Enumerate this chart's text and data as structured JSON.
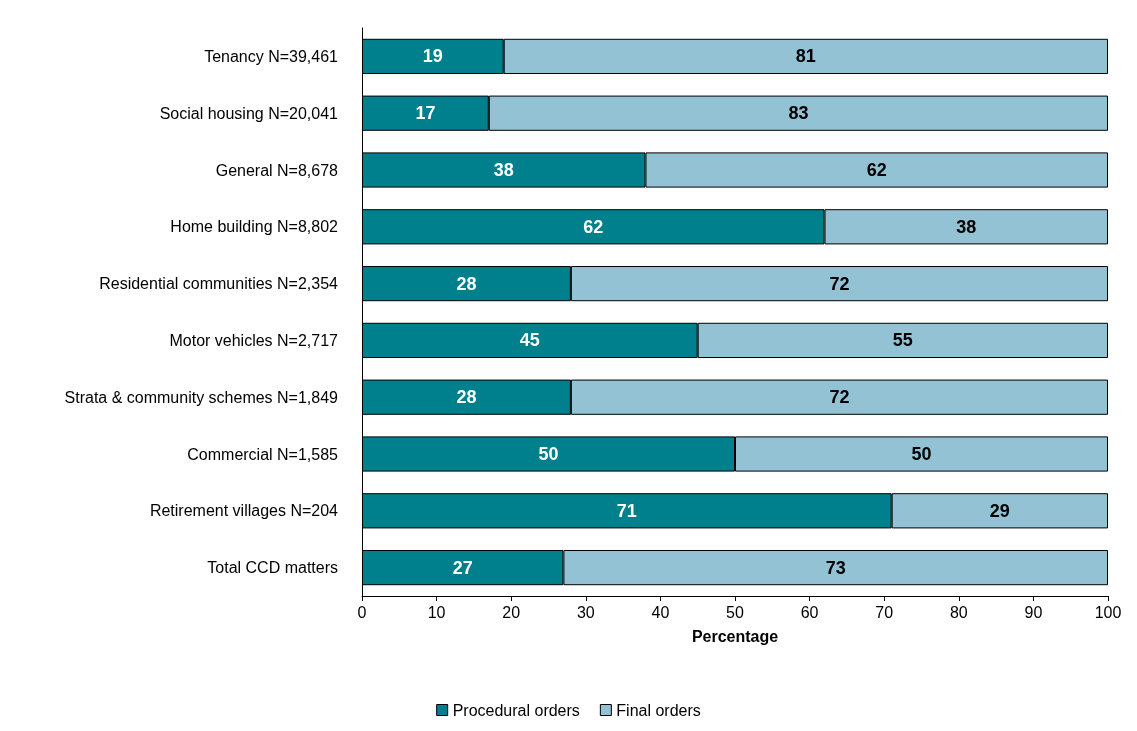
{
  "chart_data": {
    "type": "bar",
    "orientation": "horizontal",
    "stacked": true,
    "xlabel": "Percentage",
    "categories": [
      "Tenancy N=39,461",
      "Social housing N=20,041",
      "General N=8,678",
      "Home building N=8,802",
      "Residential communities N=2,354",
      "Motor vehicles N=2,717",
      "Strata & community schemes N=1,849",
      "Commercial N=1,585",
      "Retirement villages N=204",
      "Total CCD matters"
    ],
    "series": [
      {
        "name": "Procedural orders",
        "color": "#007f8c",
        "values": [
          19,
          17,
          38,
          62,
          28,
          45,
          28,
          50,
          71,
          27
        ]
      },
      {
        "name": "Final orders",
        "color": "#93c2d5",
        "values": [
          81,
          83,
          62,
          38,
          72,
          55,
          72,
          50,
          29,
          73
        ]
      }
    ],
    "xlim": [
      0,
      100
    ],
    "xticks": [
      0,
      10,
      20,
      30,
      40,
      50,
      60,
      70,
      80,
      90,
      100
    ],
    "data_labels": true,
    "legend": "bottom",
    "grid": false
  }
}
